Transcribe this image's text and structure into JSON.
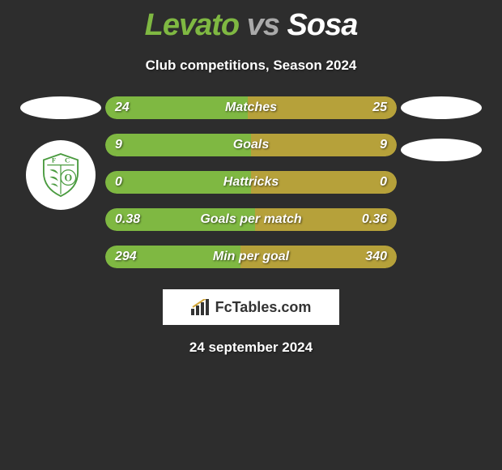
{
  "title": {
    "player1": "Levato",
    "vs": "vs",
    "player2": "Sosa"
  },
  "subtitle": "Club competitions, Season 2024",
  "colors": {
    "bar_left": "#7fb842",
    "bar_right": "#b6a13a",
    "background": "#2d2d2d"
  },
  "stats": [
    {
      "label": "Matches",
      "left_val": "24",
      "right_val": "25",
      "left_pct": 48.98,
      "right_pct": 51.02
    },
    {
      "label": "Goals",
      "left_val": "9",
      "right_val": "9",
      "left_pct": 50,
      "right_pct": 50
    },
    {
      "label": "Hattricks",
      "left_val": "0",
      "right_val": "0",
      "left_pct": 50,
      "right_pct": 50
    },
    {
      "label": "Goals per match",
      "left_val": "0.38",
      "right_val": "0.36",
      "left_pct": 51.35,
      "right_pct": 48.65
    },
    {
      "label": "Min per goal",
      "left_val": "294",
      "right_val": "340",
      "left_pct": 46.37,
      "right_pct": 53.63
    }
  ],
  "logo_text": "FcTables.com",
  "date": "24 september 2024"
}
